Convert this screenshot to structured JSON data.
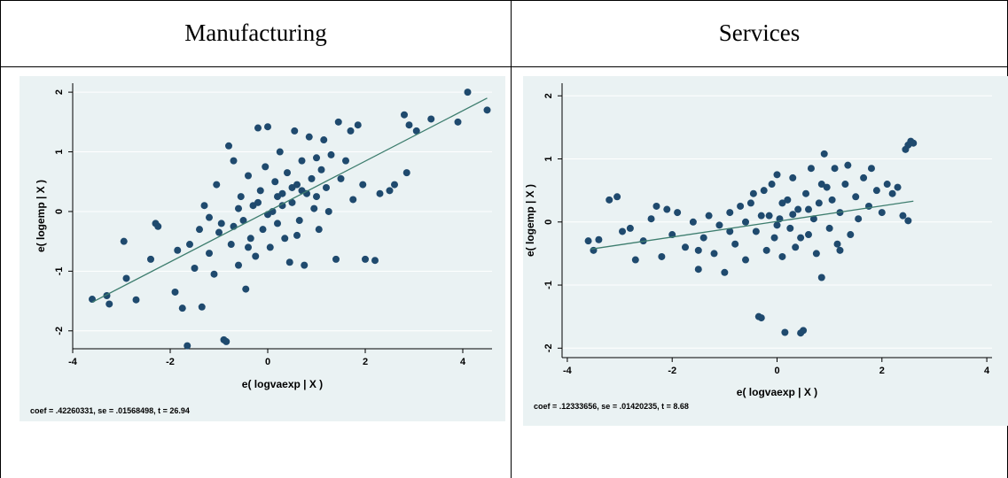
{
  "headers": [
    "Manufacturing",
    "Services"
  ],
  "colors": {
    "panel_bg": "#eaf2f3",
    "marker": "#1f4a6e",
    "fit_line": "#3d7d6e",
    "grid": "#ffffff"
  },
  "chart_data": [
    {
      "type": "scatter",
      "title": "",
      "xlabel": "e( logvaexp | X )",
      "ylabel": "e( logemp | X )",
      "xlim": [
        -4,
        4.6
      ],
      "ylim": [
        -2.3,
        2.15
      ],
      "xticks": [
        -4,
        -2,
        0,
        2,
        4
      ],
      "xtick_labels": [
        "-4",
        "-2",
        "0",
        "2",
        "4"
      ],
      "yticks": [
        -2,
        -1,
        0,
        1,
        2
      ],
      "ytick_labels": [
        "-2",
        "-1",
        "0",
        "1",
        "2"
      ],
      "grid": true,
      "fit_line": {
        "x": [
          -3.6,
          4.5
        ],
        "y": [
          -1.52,
          1.9
        ]
      },
      "note": "coef = .42260331, se = .01568498, t = 26.94",
      "points": [
        {
          "x": -3.6,
          "y": -1.47
        },
        {
          "x": -3.3,
          "y": -1.41
        },
        {
          "x": -3.25,
          "y": -1.55
        },
        {
          "x": -2.9,
          "y": -1.12
        },
        {
          "x": -2.95,
          "y": -0.5
        },
        {
          "x": -2.7,
          "y": -1.48
        },
        {
          "x": -2.4,
          "y": -0.8
        },
        {
          "x": -2.3,
          "y": -0.2
        },
        {
          "x": -2.25,
          "y": -0.25
        },
        {
          "x": -1.9,
          "y": -1.35
        },
        {
          "x": -1.85,
          "y": -0.65
        },
        {
          "x": -1.75,
          "y": -1.62
        },
        {
          "x": -1.65,
          "y": -2.25
        },
        {
          "x": -1.5,
          "y": -0.95
        },
        {
          "x": -1.4,
          "y": -0.3
        },
        {
          "x": -1.35,
          "y": -1.6
        },
        {
          "x": -1.3,
          "y": 0.1
        },
        {
          "x": -1.2,
          "y": -0.7
        },
        {
          "x": -1.1,
          "y": -1.05
        },
        {
          "x": -1.05,
          "y": 0.45
        },
        {
          "x": -0.95,
          "y": -0.2
        },
        {
          "x": -0.9,
          "y": -2.15
        },
        {
          "x": -0.85,
          "y": -2.18
        },
        {
          "x": -0.8,
          "y": 1.1
        },
        {
          "x": -0.75,
          "y": -0.55
        },
        {
          "x": -0.7,
          "y": 0.85
        },
        {
          "x": -0.6,
          "y": -0.9
        },
        {
          "x": -0.55,
          "y": 0.25
        },
        {
          "x": -0.5,
          "y": -0.15
        },
        {
          "x": -0.45,
          "y": -1.3
        },
        {
          "x": -0.4,
          "y": 0.6
        },
        {
          "x": -0.35,
          "y": -0.45
        },
        {
          "x": -0.3,
          "y": 0.1
        },
        {
          "x": -0.25,
          "y": -0.75
        },
        {
          "x": -0.2,
          "y": 1.4
        },
        {
          "x": -0.15,
          "y": 0.35
        },
        {
          "x": -0.1,
          "y": -0.3
        },
        {
          "x": -0.05,
          "y": 0.75
        },
        {
          "x": 0.0,
          "y": 1.42
        },
        {
          "x": 0.05,
          "y": -0.6
        },
        {
          "x": 0.1,
          "y": 0.0
        },
        {
          "x": 0.15,
          "y": 0.5
        },
        {
          "x": 0.2,
          "y": -0.2
        },
        {
          "x": 0.25,
          "y": 1.0
        },
        {
          "x": 0.3,
          "y": 0.3
        },
        {
          "x": 0.35,
          "y": -0.45
        },
        {
          "x": 0.4,
          "y": 0.65
        },
        {
          "x": 0.45,
          "y": -0.85
        },
        {
          "x": 0.5,
          "y": 0.15
        },
        {
          "x": 0.55,
          "y": 1.35
        },
        {
          "x": 0.6,
          "y": 0.45
        },
        {
          "x": 0.65,
          "y": -0.15
        },
        {
          "x": 0.7,
          "y": 0.85
        },
        {
          "x": 0.75,
          "y": -0.9
        },
        {
          "x": 0.8,
          "y": 0.3
        },
        {
          "x": 0.85,
          "y": 1.25
        },
        {
          "x": 0.9,
          "y": 0.55
        },
        {
          "x": 0.95,
          "y": 0.05
        },
        {
          "x": 1.0,
          "y": 0.9
        },
        {
          "x": 1.05,
          "y": -0.3
        },
        {
          "x": 1.1,
          "y": 0.7
        },
        {
          "x": 1.15,
          "y": 1.2
        },
        {
          "x": 1.2,
          "y": 0.4
        },
        {
          "x": 1.25,
          "y": 0.0
        },
        {
          "x": 1.3,
          "y": 0.95
        },
        {
          "x": 1.4,
          "y": -0.8
        },
        {
          "x": 1.45,
          "y": 1.5
        },
        {
          "x": 1.5,
          "y": 0.55
        },
        {
          "x": 1.6,
          "y": 0.85
        },
        {
          "x": 1.7,
          "y": 1.35
        },
        {
          "x": 1.75,
          "y": 0.2
        },
        {
          "x": 1.85,
          "y": 1.45
        },
        {
          "x": 1.95,
          "y": 0.45
        },
        {
          "x": 2.0,
          "y": -0.8
        },
        {
          "x": 2.2,
          "y": -0.82
        },
        {
          "x": 2.3,
          "y": 0.3
        },
        {
          "x": 2.5,
          "y": 0.35
        },
        {
          "x": 2.6,
          "y": 0.45
        },
        {
          "x": 2.85,
          "y": 0.65
        },
        {
          "x": 2.8,
          "y": 1.62
        },
        {
          "x": 2.9,
          "y": 1.45
        },
        {
          "x": 3.05,
          "y": 1.35
        },
        {
          "x": 3.35,
          "y": 1.55
        },
        {
          "x": 3.9,
          "y": 1.5
        },
        {
          "x": 4.1,
          "y": 2.0
        },
        {
          "x": 4.5,
          "y": 1.7
        },
        {
          "x": -0.6,
          "y": 0.05
        },
        {
          "x": -0.2,
          "y": 0.15
        },
        {
          "x": 0.2,
          "y": 0.25
        },
        {
          "x": 0.5,
          "y": 0.4
        },
        {
          "x": -1.0,
          "y": -0.35
        },
        {
          "x": -0.7,
          "y": -0.25
        },
        {
          "x": 0.0,
          "y": -0.05
        },
        {
          "x": 0.3,
          "y": 0.1
        },
        {
          "x": 0.7,
          "y": 0.35
        },
        {
          "x": 1.0,
          "y": 0.25
        },
        {
          "x": -1.6,
          "y": -0.55
        },
        {
          "x": -1.2,
          "y": -0.1
        },
        {
          "x": -0.4,
          "y": -0.6
        },
        {
          "x": 0.6,
          "y": -0.4
        }
      ]
    },
    {
      "type": "scatter",
      "title": "",
      "xlabel": "e( logvaexp | X )",
      "ylabel": "e( logemp | X )",
      "xlim": [
        -4.1,
        4.1
      ],
      "ylim": [
        -2.15,
        2.2
      ],
      "xticks": [
        -4,
        -2,
        0,
        2,
        4
      ],
      "xtick_labels": [
        "-4",
        "-2",
        "0",
        "2",
        "4"
      ],
      "yticks": [
        -2,
        -1,
        0,
        1,
        2
      ],
      "ytick_labels": [
        "-2",
        "-1",
        "0",
        "1",
        "2"
      ],
      "grid": true,
      "fit_line": {
        "x": [
          -3.55,
          2.6
        ],
        "y": [
          -0.43,
          0.33
        ]
      },
      "note": "coef = .12333656, se = .01420235, t = 8.68",
      "points": [
        {
          "x": -3.6,
          "y": -0.3
        },
        {
          "x": -3.5,
          "y": -0.45
        },
        {
          "x": -3.4,
          "y": -0.28
        },
        {
          "x": -3.2,
          "y": 0.35
        },
        {
          "x": -3.05,
          "y": 0.4
        },
        {
          "x": -2.95,
          "y": -0.15
        },
        {
          "x": -2.8,
          "y": -0.1
        },
        {
          "x": -2.7,
          "y": -0.6
        },
        {
          "x": -2.55,
          "y": -0.3
        },
        {
          "x": -2.4,
          "y": 0.05
        },
        {
          "x": -2.3,
          "y": 0.25
        },
        {
          "x": -2.2,
          "y": -0.55
        },
        {
          "x": -2.1,
          "y": 0.2
        },
        {
          "x": -2.0,
          "y": -0.2
        },
        {
          "x": -1.9,
          "y": 0.15
        },
        {
          "x": -1.75,
          "y": -0.4
        },
        {
          "x": -1.6,
          "y": 0.0
        },
        {
          "x": -1.5,
          "y": -0.75
        },
        {
          "x": -1.4,
          "y": -0.25
        },
        {
          "x": -1.3,
          "y": 0.1
        },
        {
          "x": -1.2,
          "y": -0.5
        },
        {
          "x": -1.1,
          "y": -0.05
        },
        {
          "x": -1.0,
          "y": -0.8
        },
        {
          "x": -0.9,
          "y": 0.15
        },
        {
          "x": -0.8,
          "y": -0.35
        },
        {
          "x": -0.7,
          "y": 0.25
        },
        {
          "x": -0.6,
          "y": -0.6
        },
        {
          "x": -0.5,
          "y": 0.3
        },
        {
          "x": -0.4,
          "y": -0.15
        },
        {
          "x": -0.35,
          "y": -1.5
        },
        {
          "x": -0.3,
          "y": -1.52
        },
        {
          "x": -0.25,
          "y": 0.5
        },
        {
          "x": -0.2,
          "y": -0.45
        },
        {
          "x": -0.15,
          "y": 0.1
        },
        {
          "x": -0.1,
          "y": 0.6
        },
        {
          "x": -0.05,
          "y": -0.25
        },
        {
          "x": 0.0,
          "y": 0.75
        },
        {
          "x": 0.05,
          "y": 0.05
        },
        {
          "x": 0.1,
          "y": -0.55
        },
        {
          "x": 0.15,
          "y": -1.75
        },
        {
          "x": 0.2,
          "y": 0.35
        },
        {
          "x": 0.25,
          "y": -0.1
        },
        {
          "x": 0.3,
          "y": 0.7
        },
        {
          "x": 0.35,
          "y": -0.4
        },
        {
          "x": 0.4,
          "y": 0.2
        },
        {
          "x": 0.45,
          "y": -1.76
        },
        {
          "x": 0.5,
          "y": -1.72
        },
        {
          "x": 0.55,
          "y": 0.45
        },
        {
          "x": 0.6,
          "y": -0.2
        },
        {
          "x": 0.65,
          "y": 0.85
        },
        {
          "x": 0.7,
          "y": 0.05
        },
        {
          "x": 0.75,
          "y": -0.5
        },
        {
          "x": 0.8,
          "y": 0.3
        },
        {
          "x": 0.85,
          "y": -0.88
        },
        {
          "x": 0.9,
          "y": 1.08
        },
        {
          "x": 0.95,
          "y": 0.55
        },
        {
          "x": 1.0,
          "y": -0.1
        },
        {
          "x": 1.05,
          "y": 0.35
        },
        {
          "x": 1.1,
          "y": 0.85
        },
        {
          "x": 1.15,
          "y": -0.35
        },
        {
          "x": 1.2,
          "y": 0.15
        },
        {
          "x": 1.3,
          "y": 0.6
        },
        {
          "x": 1.35,
          "y": 0.9
        },
        {
          "x": 1.4,
          "y": -0.2
        },
        {
          "x": 1.5,
          "y": 0.4
        },
        {
          "x": 1.55,
          "y": 0.05
        },
        {
          "x": 1.65,
          "y": 0.7
        },
        {
          "x": 1.75,
          "y": 0.25
        },
        {
          "x": 1.8,
          "y": 0.85
        },
        {
          "x": 1.9,
          "y": 0.5
        },
        {
          "x": 2.0,
          "y": 0.15
        },
        {
          "x": 2.1,
          "y": 0.6
        },
        {
          "x": 2.2,
          "y": 0.45
        },
        {
          "x": 2.3,
          "y": 0.55
        },
        {
          "x": 2.4,
          "y": 0.1
        },
        {
          "x": 2.5,
          "y": 1.22
        },
        {
          "x": 2.55,
          "y": 1.28
        },
        {
          "x": 2.6,
          "y": 1.25
        },
        {
          "x": 2.5,
          "y": 0.02
        },
        {
          "x": 2.45,
          "y": 1.15
        },
        {
          "x": -0.6,
          "y": 0.0
        },
        {
          "x": -0.3,
          "y": 0.1
        },
        {
          "x": 0.0,
          "y": -0.05
        },
        {
          "x": 0.3,
          "y": 0.12
        },
        {
          "x": 0.6,
          "y": 0.2
        },
        {
          "x": -0.9,
          "y": -0.15
        },
        {
          "x": 0.1,
          "y": 0.3
        },
        {
          "x": 0.45,
          "y": -0.25
        },
        {
          "x": 1.2,
          "y": -0.45
        },
        {
          "x": -1.5,
          "y": -0.45
        },
        {
          "x": -0.45,
          "y": 0.45
        },
        {
          "x": 0.85,
          "y": 0.6
        }
      ]
    }
  ]
}
